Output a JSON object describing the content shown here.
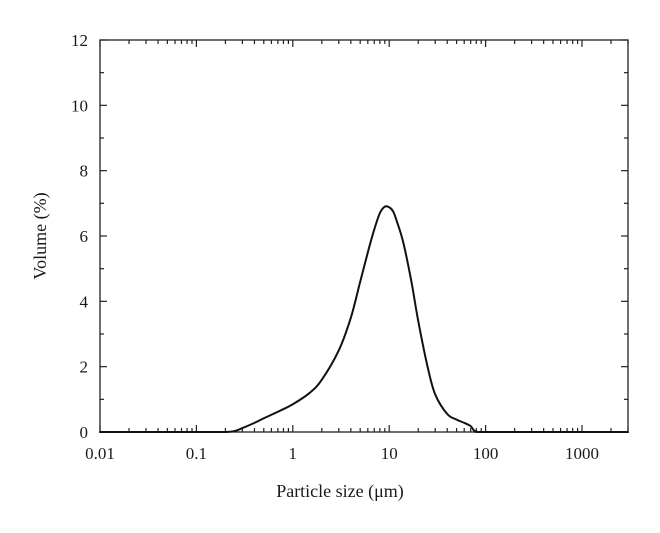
{
  "chart_data": {
    "type": "line",
    "title": "",
    "xlabel": "Particle size (μm)",
    "ylabel": "Volume (%)",
    "x_scale": "log",
    "xlim": [
      0.01,
      3000
    ],
    "ylim": [
      0,
      12
    ],
    "grid": false,
    "x_ticks": [
      {
        "value": 0.01,
        "label": "0.01"
      },
      {
        "value": 0.1,
        "label": "0.1"
      },
      {
        "value": 1,
        "label": "1"
      },
      {
        "value": 10,
        "label": "10"
      },
      {
        "value": 100,
        "label": "100"
      },
      {
        "value": 1000,
        "label": "1000"
      }
    ],
    "y_ticks": [
      {
        "value": 0,
        "label": "0"
      },
      {
        "value": 2,
        "label": "2"
      },
      {
        "value": 4,
        "label": "4"
      },
      {
        "value": 6,
        "label": "6"
      },
      {
        "value": 8,
        "label": "8"
      },
      {
        "value": 10,
        "label": "10"
      },
      {
        "value": 12,
        "label": "12"
      }
    ],
    "series": [
      {
        "x": [
          0.01,
          0.1,
          0.2,
          0.25,
          0.3,
          0.4,
          0.5,
          0.7,
          1.0,
          1.5,
          2.0,
          3.0,
          4.0,
          5.0,
          6.0,
          7.0,
          8.0,
          9.0,
          10.0,
          11.0,
          12.0,
          14.0,
          17.0,
          20.0,
          25.0,
          30.0,
          40.0,
          50.0,
          60.0,
          70.0,
          75.0,
          80.0,
          100.0,
          1000.0,
          3000.0
        ],
        "y": [
          0.0,
          0.0,
          0.0,
          0.03,
          0.12,
          0.28,
          0.42,
          0.62,
          0.85,
          1.2,
          1.6,
          2.5,
          3.5,
          4.6,
          5.5,
          6.2,
          6.7,
          6.9,
          6.88,
          6.75,
          6.45,
          5.8,
          4.6,
          3.4,
          2.0,
          1.15,
          0.55,
          0.38,
          0.28,
          0.18,
          0.06,
          0.02,
          0.0,
          0.0,
          0.0
        ]
      }
    ]
  }
}
